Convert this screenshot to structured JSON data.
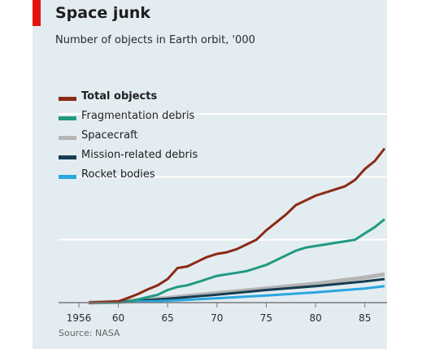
{
  "header": {
    "title": "Space junk",
    "subtitle": "Number of objects in Earth orbit, '000"
  },
  "source": "Source: NASA",
  "colors": {
    "background": "#e3ecf1",
    "accent": "#e3120b"
  },
  "chart_data": {
    "type": "line",
    "title": "Space junk",
    "subtitle": "Number of objects in Earth orbit, '000",
    "xlabel": "",
    "ylabel": "",
    "x_ticks": [
      {
        "value": 1956,
        "label": "1956"
      },
      {
        "value": 1960,
        "label": "60"
      },
      {
        "value": 1965,
        "label": "65"
      },
      {
        "value": 1970,
        "label": "70"
      },
      {
        "value": 1975,
        "label": "75"
      },
      {
        "value": 1980,
        "label": "80"
      },
      {
        "value": 1985,
        "label": "85"
      }
    ],
    "xlim": [
      1956,
      1987
    ],
    "ylim": [
      0,
      12
    ],
    "gridlines_y": [
      4,
      8,
      12
    ],
    "y_tick_labels_visible": false,
    "grid": true,
    "legend_position": "top-left",
    "series": [
      {
        "name": "Total objects",
        "color": "#8b2a14",
        "bold": true,
        "x": [
          1957,
          1960,
          1961,
          1962,
          1963,
          1964,
          1965,
          1966,
          1967,
          1968,
          1969,
          1970,
          1971,
          1972,
          1973,
          1974,
          1975,
          1976,
          1977,
          1978,
          1979,
          1980,
          1981,
          1982,
          1983,
          1984,
          1985,
          1986,
          1987
        ],
        "y": [
          0.0,
          0.08,
          0.3,
          0.55,
          0.85,
          1.1,
          1.5,
          2.2,
          2.3,
          2.6,
          2.9,
          3.1,
          3.2,
          3.4,
          3.7,
          4.0,
          4.6,
          5.1,
          5.6,
          6.2,
          6.5,
          6.8,
          7.0,
          7.2,
          7.4,
          7.8,
          8.5,
          9.0,
          9.8
        ]
      },
      {
        "name": "Fragmentation debris",
        "color": "#1f9a82",
        "bold": false,
        "x": [
          1957,
          1960,
          1961,
          1962,
          1963,
          1964,
          1965,
          1966,
          1967,
          1968,
          1969,
          1970,
          1971,
          1972,
          1973,
          1974,
          1975,
          1976,
          1977,
          1978,
          1979,
          1980,
          1981,
          1982,
          1983,
          1984,
          1985,
          1986,
          1987
        ],
        "y": [
          0.0,
          0.0,
          0.05,
          0.2,
          0.35,
          0.5,
          0.8,
          1.0,
          1.1,
          1.3,
          1.5,
          1.7,
          1.8,
          1.9,
          2.0,
          2.2,
          2.4,
          2.7,
          3.0,
          3.3,
          3.5,
          3.6,
          3.7,
          3.8,
          3.9,
          4.0,
          4.4,
          4.8,
          5.3
        ]
      },
      {
        "name": "Spacecraft",
        "color": "#b4b4b4",
        "bold": false,
        "x": [
          1957,
          1960,
          1965,
          1970,
          1975,
          1980,
          1985,
          1987
        ],
        "y": [
          0.0,
          0.05,
          0.3,
          0.6,
          0.9,
          1.2,
          1.6,
          1.8
        ]
      },
      {
        "name": "Mission-related debris",
        "color": "#163d52",
        "bold": false,
        "x": [
          1957,
          1960,
          1965,
          1970,
          1975,
          1980,
          1985,
          1987
        ],
        "y": [
          0.0,
          0.04,
          0.25,
          0.5,
          0.8,
          1.05,
          1.35,
          1.5
        ]
      },
      {
        "name": "Rocket bodies",
        "color": "#2aa7e0",
        "bold": false,
        "x": [
          1957,
          1960,
          1965,
          1970,
          1975,
          1980,
          1985,
          1987
        ],
        "y": [
          0.0,
          0.02,
          0.12,
          0.28,
          0.45,
          0.65,
          0.9,
          1.05
        ]
      }
    ]
  }
}
